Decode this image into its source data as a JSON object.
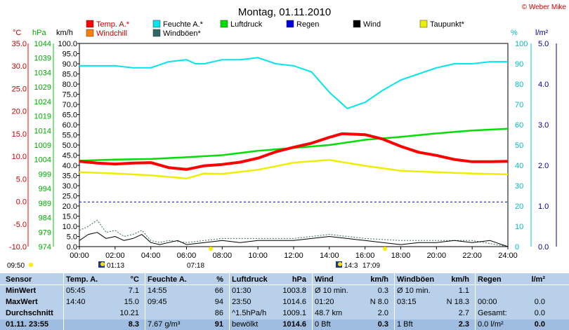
{
  "title": "Montag, 01.11.2010",
  "copyright": "© Weber Mike",
  "chart_data": {
    "type": "line",
    "x_tick_labels": [
      "00:00",
      "02:00",
      "04:00",
      "06:00",
      "08:00",
      "10:00",
      "12:00",
      "14:00",
      "16:00",
      "18:00",
      "20:00",
      "22:00",
      "24:00"
    ],
    "x_range_hours": [
      0,
      24
    ],
    "legend": [
      {
        "label": "Temp. A.*",
        "color": "#ff0000"
      },
      {
        "label": "Feuchte A.*",
        "color": "#00e5ee"
      },
      {
        "label": "Luftdruck",
        "color": "#00dd00"
      },
      {
        "label": "Regen",
        "color": "#0000dd"
      },
      {
        "label": "Wind",
        "color": "#000000"
      },
      {
        "label": "Taupunkt*",
        "color": "#eeee00"
      },
      {
        "label": "Windchill",
        "color": "#ff7f00"
      },
      {
        "label": "Windböen*",
        "color": "#336666"
      }
    ],
    "axes": {
      "temp": {
        "unit": "°C",
        "range": [
          -10,
          35
        ],
        "ticks": [
          "35.0",
          "30.0",
          "25.0",
          "20.0",
          "15.0",
          "10.0",
          "5.0",
          "0.0",
          "-5.0",
          "-10.0"
        ],
        "color": "#ff0000"
      },
      "pressure": {
        "unit": "hPa",
        "range": [
          974,
          1044
        ],
        "ticks": [
          "1044",
          "1039",
          "1034",
          "1029",
          "1024",
          "1019",
          "1014",
          "1009",
          "1004",
          "999",
          "994",
          "989",
          "984",
          "979",
          "974"
        ],
        "color": "#00aa00"
      },
      "wind": {
        "unit": "km/h",
        "range": [
          0,
          100
        ],
        "ticks": [
          "100.0",
          "95.0",
          "90.0",
          "85.0",
          "80.0",
          "75.0",
          "70.0",
          "65.0",
          "60.0",
          "55.0",
          "50.0",
          "45.0",
          "40.0",
          "35.0",
          "30.0",
          "25.0",
          "20.0",
          "15.0",
          "10.0",
          "5.0",
          "0.0"
        ],
        "color": "#000000"
      },
      "humidity": {
        "unit": "%",
        "range": [
          0,
          100
        ],
        "ticks": [
          "100",
          "90",
          "80",
          "70",
          "60",
          "50",
          "40",
          "30",
          "20",
          "10",
          "0"
        ],
        "color": "#00cccc"
      },
      "rain": {
        "unit": "l/m²",
        "range": [
          0,
          5
        ],
        "ticks": [
          "5.0",
          "4.0",
          "3.0",
          "2.0",
          "1.0",
          "0.0"
        ],
        "color": "#000099"
      }
    },
    "series": [
      {
        "name": "Temp. A.*",
        "axis": "temp",
        "x": [
          0,
          1,
          2,
          3,
          4,
          5,
          6,
          7,
          8,
          9,
          10,
          11,
          12,
          13,
          14,
          14.7,
          16,
          17,
          18,
          19,
          20,
          21,
          22,
          23,
          24
        ],
        "y": [
          8.9,
          8.5,
          8.3,
          8.5,
          8.6,
          7.5,
          7.1,
          7.9,
          8.2,
          8.7,
          9.6,
          11.0,
          12.0,
          12.9,
          14.2,
          15.0,
          14.8,
          13.8,
          12.2,
          10.9,
          10.2,
          9.3,
          8.8,
          8.8,
          8.9
        ]
      },
      {
        "name": "Feuchte A.*",
        "axis": "humidity",
        "x": [
          0,
          1,
          2,
          3,
          4,
          5,
          6,
          6.5,
          7,
          8,
          9,
          10,
          11,
          12,
          13,
          14,
          15,
          16,
          17,
          18,
          19,
          20,
          21,
          22,
          23,
          24
        ],
        "y": [
          89,
          89,
          89,
          88,
          88,
          91,
          92,
          90,
          90,
          92,
          92,
          93,
          90,
          89,
          86,
          76,
          68,
          71,
          77,
          82,
          85,
          88,
          90,
          90,
          91,
          91
        ]
      },
      {
        "name": "Luftdruck",
        "axis": "pressure",
        "x": [
          0,
          2,
          4,
          6,
          8,
          10,
          12,
          14,
          16,
          18,
          20,
          22,
          24
        ],
        "y": [
          1003.6,
          1004,
          1004.2,
          1004.8,
          1005.5,
          1007,
          1008,
          1009,
          1010.8,
          1011.8,
          1013,
          1014,
          1014.6
        ]
      },
      {
        "name": "Taupunkt*",
        "axis": "temp",
        "x": [
          0,
          2,
          4,
          6,
          7,
          8,
          10,
          12,
          14,
          16,
          18,
          20,
          22,
          24
        ],
        "y": [
          6.5,
          6.2,
          5.8,
          5.1,
          6.2,
          6.1,
          7,
          8.6,
          9.2,
          7.9,
          6.8,
          6.5,
          6.2,
          6.0
        ]
      },
      {
        "name": "Regen",
        "axis": "rain",
        "x": [
          0,
          24
        ],
        "y": [
          1.1,
          1.1
        ]
      },
      {
        "name": "Wind",
        "axis": "wind",
        "x": [
          0,
          0.5,
          1,
          1.5,
          2,
          2.5,
          3,
          3.5,
          4,
          4.5,
          5,
          5.5,
          6,
          7,
          8,
          9,
          10,
          11,
          12,
          13,
          14,
          15,
          16,
          17,
          18,
          19,
          20,
          21,
          22,
          23,
          24
        ],
        "y": [
          3,
          6,
          7,
          4,
          5,
          3,
          4,
          6,
          2,
          1,
          2,
          3,
          1,
          2,
          3,
          2,
          3,
          3,
          3,
          4,
          5,
          4,
          3,
          2,
          1,
          2,
          2,
          3,
          2,
          3,
          0
        ]
      },
      {
        "name": "Windböen*",
        "axis": "wind",
        "x": [
          0,
          0.5,
          1,
          1.5,
          2,
          2.5,
          3,
          3.5,
          4,
          4.5,
          5,
          6,
          8,
          10,
          12,
          14,
          16,
          18,
          20,
          22,
          24
        ],
        "y": [
          8,
          10,
          13,
          7,
          8,
          5,
          6,
          8,
          3,
          2,
          3,
          2,
          4,
          4,
          4,
          6,
          4,
          3,
          3,
          3,
          0
        ]
      }
    ],
    "markers": [
      {
        "label": "09:50",
        "pos": "below-left"
      },
      {
        "label": "01:13",
        "pos": "sunrise"
      },
      {
        "label": "07:18",
        "pos": "below"
      },
      {
        "label": "14:3",
        "pos": "moon"
      },
      {
        "label": "17:09",
        "pos": "below"
      }
    ]
  },
  "table": {
    "headers": [
      {
        "label": "Sensor",
        "unit": ""
      },
      {
        "label": "Temp. A.",
        "unit": "°C"
      },
      {
        "label": "Feuchte A.",
        "unit": "%"
      },
      {
        "label": "Luftdruck",
        "unit": "hPa"
      },
      {
        "label": "Wind",
        "unit": "km/h"
      },
      {
        "label": "Windböen",
        "unit": "km/h"
      },
      {
        "label": "Regen",
        "unit": "l/m²"
      }
    ],
    "rows": [
      {
        "label": "MinWert",
        "cells": [
          "05:45",
          "7.1",
          "14:55",
          "66",
          "01:30",
          "1003.8",
          "Ø 10 min.",
          "0.3",
          "Ø 10 min.",
          "1.1",
          "",
          ""
        ]
      },
      {
        "label": "MaxWert",
        "cells": [
          "14:40",
          "15.0",
          "09:45",
          "94",
          "23:50",
          "1014.6",
          "01:20",
          "N 8.0",
          "03:15",
          "N 18.3",
          "00:00",
          "0.0"
        ]
      },
      {
        "label": "Durchschnitt",
        "cells": [
          "",
          "10.21",
          "",
          "86",
          "^1.5hPa/h",
          "1009.1",
          "48.7 km",
          "2.0",
          "",
          "2.7",
          "Gesamt:",
          "0.0"
        ]
      },
      {
        "label": "01.11. 23:55",
        "cells": [
          "",
          "8.3",
          "7.67 g/m³",
          "91",
          "bewölkt",
          "1014.6",
          "0 Bft",
          "0.3",
          "1 Bft",
          "2.3",
          "0.0 l/m²",
          "0.0"
        ]
      }
    ]
  }
}
